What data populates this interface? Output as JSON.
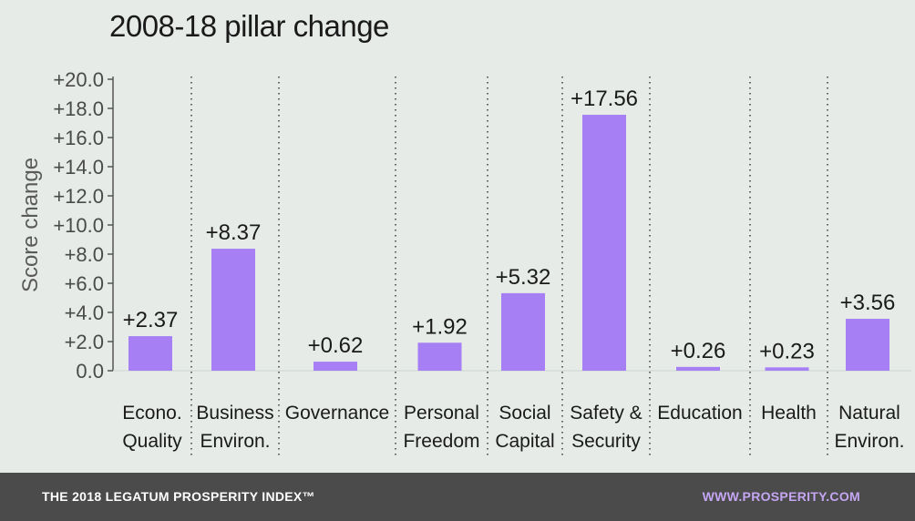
{
  "chart_data": {
    "type": "bar",
    "title": "2008-18 pillar change",
    "ylabel": "Score change",
    "xlabel": "",
    "ylim": [
      0,
      20
    ],
    "yticks": [
      "0.0",
      "+2.0",
      "+4.0",
      "+6.0",
      "+8.0",
      "+10.0",
      "+12.0",
      "+14.0",
      "+16.0",
      "+18.0",
      "+20.0"
    ],
    "categories": [
      [
        "Econo.",
        "Quality"
      ],
      [
        "Business",
        "Environ."
      ],
      [
        "Governance"
      ],
      [
        "Personal",
        "Freedom"
      ],
      [
        "Social",
        "Capital"
      ],
      [
        "Safety &",
        "Security"
      ],
      [
        "Education"
      ],
      [
        "Health"
      ],
      [
        "Natural",
        "Environ."
      ]
    ],
    "values": [
      2.37,
      8.37,
      0.62,
      1.92,
      5.32,
      17.56,
      0.26,
      0.23,
      3.56
    ],
    "data_labels": [
      "+2.37",
      "+8.37",
      "+0.62",
      "+1.92",
      "+5.32",
      "+17.56",
      "+0.26",
      "+0.23",
      "+3.56"
    ],
    "bar_color": "#a67ff5",
    "grid": false,
    "legend": "none"
  },
  "footer": {
    "left_text": "THE 2018 LEGATUM PROSPERITY INDEX™",
    "right_text": "WWW.PROSPERITY.COM"
  },
  "colors": {
    "background": "#e6ebe7",
    "footer_bg": "#4b4b4b",
    "footer_link": "#c4a6f2"
  }
}
